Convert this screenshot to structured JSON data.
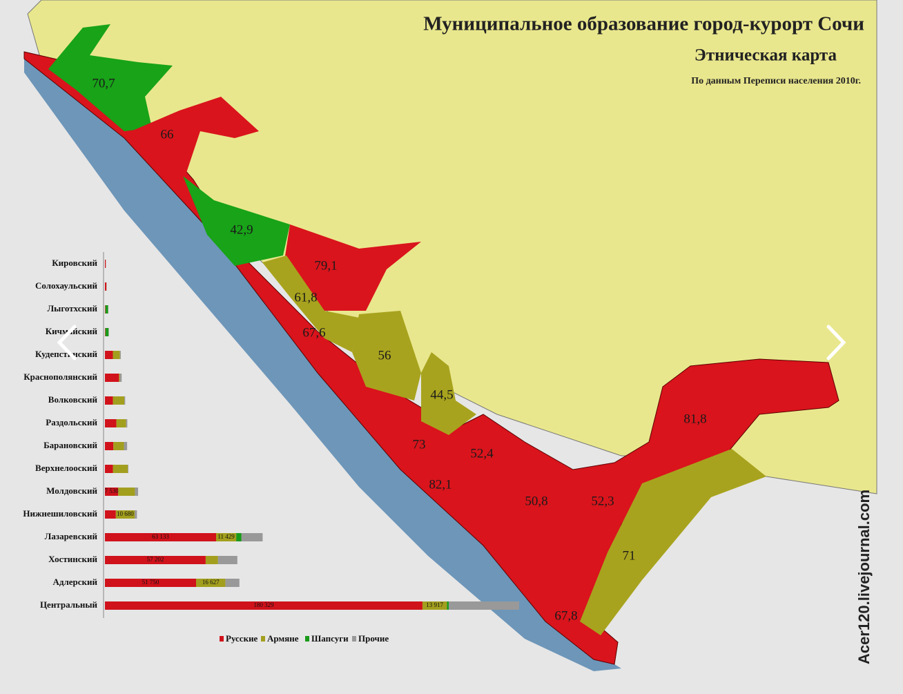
{
  "map": {
    "title": "Муниципальное образование город-курорт Сочи",
    "subtitle": "Этническая карта",
    "source_note": "По данным Переписи населения 2010г.",
    "watermark": "Acer120.livejournal.com",
    "regions": [
      {
        "label": "70,7"
      },
      {
        "label": "66"
      },
      {
        "label": "42,9"
      },
      {
        "label": "79,1"
      },
      {
        "label": "61,8"
      },
      {
        "label": "67,6"
      },
      {
        "label": "56"
      },
      {
        "label": "44,5"
      },
      {
        "label": "73"
      },
      {
        "label": "52,4"
      },
      {
        "label": "82,1"
      },
      {
        "label": "50,8"
      },
      {
        "label": "52,3"
      },
      {
        "label": "81,8"
      },
      {
        "label": "71"
      },
      {
        "label": "67,8"
      }
    ]
  },
  "chart_data": {
    "type": "stacked-bar-horizontal",
    "categories": [
      "Кировский",
      "Солохаульский",
      "Лыготхский",
      "Кичмайский",
      "Кудепстинский",
      "Краснополянский",
      "Волковский",
      "Раздольский",
      "Барановский",
      "Верхнелооский",
      "Молдовский",
      "Нижнешиловский",
      "Лазаревский",
      "Хостинский",
      "Адлерский",
      "Центральный"
    ],
    "series": [
      {
        "name": "Русские",
        "color": "#d0121b",
        "values": [
          500,
          800,
          200,
          200,
          4500,
          8000,
          4500,
          6500,
          4800,
          4500,
          7530,
          6200,
          63133,
          57202,
          51750,
          180329
        ],
        "value_labels": [
          null,
          null,
          null,
          null,
          null,
          null,
          null,
          null,
          null,
          null,
          "7 530",
          null,
          "63 133",
          "57 202",
          "51 750",
          "180 329"
        ]
      },
      {
        "name": "Армяне",
        "color": "#a39f1e",
        "values": [
          0,
          100,
          100,
          100,
          4000,
          500,
          6500,
          5500,
          6000,
          8500,
          9500,
          10680,
          11429,
          7000,
          16627,
          13917
        ],
        "value_labels": [
          null,
          null,
          null,
          null,
          null,
          null,
          null,
          null,
          null,
          null,
          null,
          "10 680",
          "11 429",
          null,
          "16 627",
          "13 917"
        ]
      },
      {
        "name": "Шапсуги",
        "color": "#1a9a1a",
        "values": [
          0,
          0,
          1500,
          1800,
          0,
          0,
          0,
          0,
          0,
          0,
          0,
          0,
          3000,
          0,
          0,
          1000
        ]
      },
      {
        "name": "Прочие",
        "color": "#999999",
        "values": [
          100,
          100,
          100,
          100,
          500,
          1000,
          500,
          700,
          1800,
          300,
          1800,
          1300,
          12000,
          11000,
          8000,
          40000
        ]
      }
    ]
  }
}
